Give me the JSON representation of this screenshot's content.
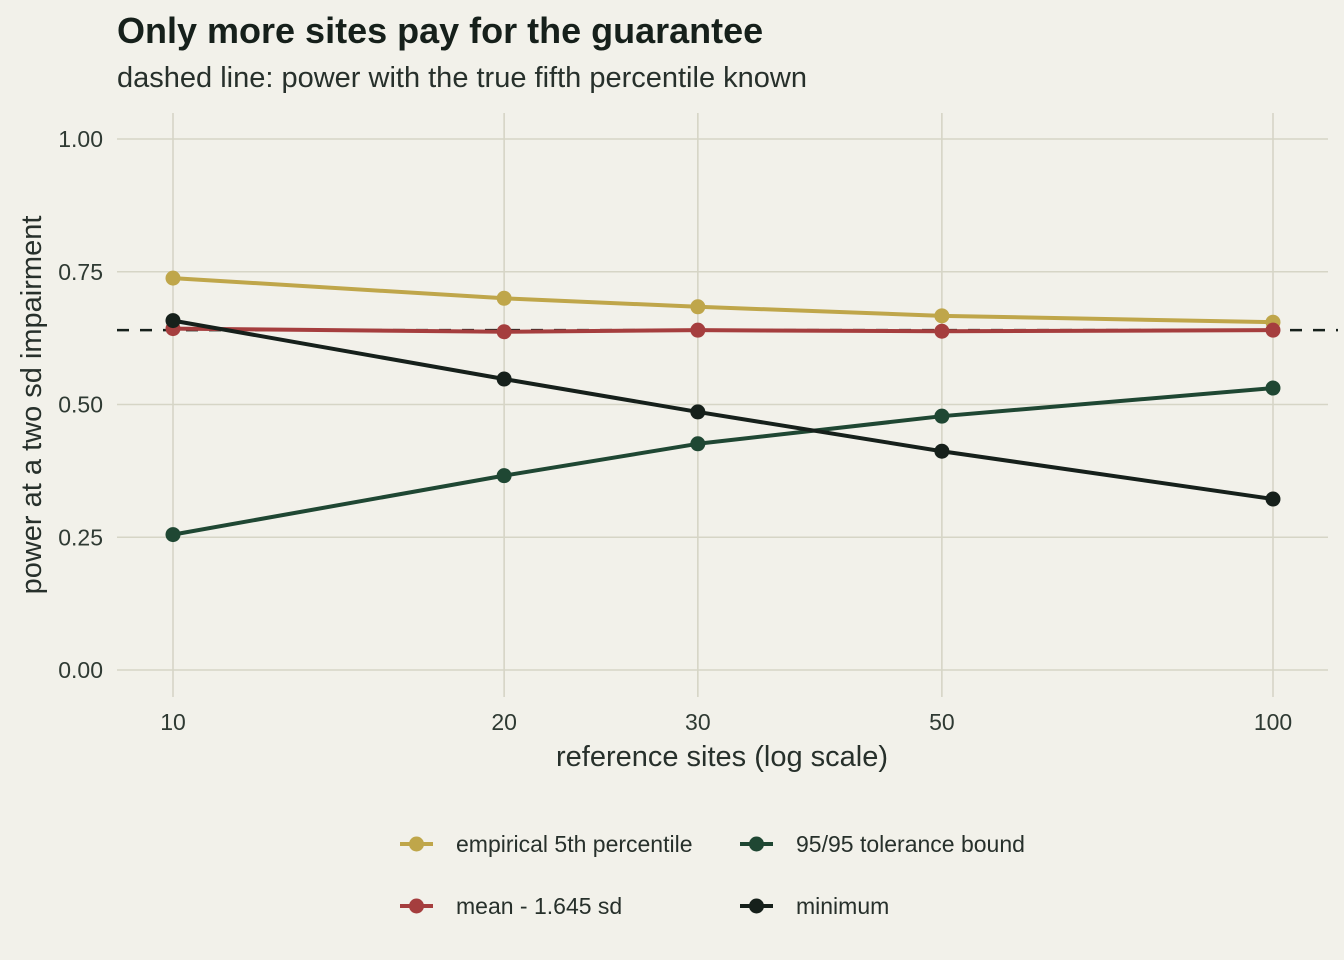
{
  "chart_data": {
    "type": "line",
    "title": "Only more sites pay for the guarantee",
    "subtitle": "dashed line: power with the true fifth percentile known",
    "xlabel": "reference sites (log scale)",
    "ylabel": "power at a two sd impairment",
    "x_scale": "log",
    "x": [
      10,
      20,
      30,
      50,
      100
    ],
    "x_ticks": [
      "10",
      "20",
      "30",
      "50",
      "100"
    ],
    "y_ticks": [
      "0.00",
      "0.25",
      "0.50",
      "0.75",
      "1.00"
    ],
    "ylim": [
      0,
      1
    ],
    "grid": true,
    "legend_position": "bottom",
    "reference_line": {
      "y": 0.64,
      "style": "dashed",
      "color": "#16201b"
    },
    "series": [
      {
        "name": "empirical 5th percentile",
        "color": "#bfa64a",
        "values": [
          0.738,
          0.7,
          0.684,
          0.667,
          0.655
        ]
      },
      {
        "name": "95/95 tolerance bound",
        "color": "#1f4733",
        "values": [
          0.255,
          0.366,
          0.426,
          0.478,
          0.531
        ]
      },
      {
        "name": "mean - 1.645 sd",
        "color": "#a53e3e",
        "values": [
          0.643,
          0.637,
          0.64,
          0.638,
          0.64
        ]
      },
      {
        "name": "minimum",
        "color": "#16201b",
        "values": [
          0.658,
          0.548,
          0.486,
          0.412,
          0.322
        ]
      }
    ]
  }
}
